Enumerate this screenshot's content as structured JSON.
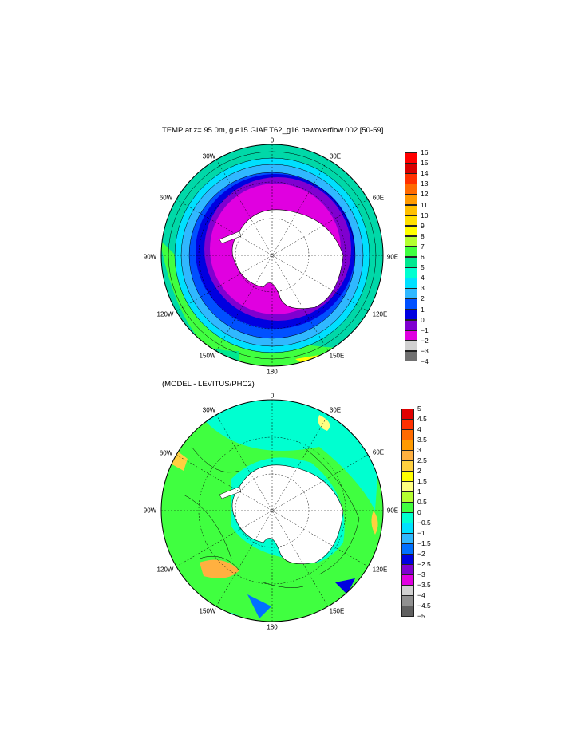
{
  "panel_top": {
    "title": "TEMP at z=  95.0m, g.e15.GIAF.T62_g16.newoverflow.002 [50-59]",
    "lon_labels": {
      "n": "0",
      "ne": "30E",
      "e1": "60E",
      "e": "90E",
      "se1": "120E",
      "se": "150E",
      "s": "180",
      "sw": "150W",
      "sw1": "120W",
      "w": "90W",
      "nw1": "60W",
      "nw": "30W"
    },
    "colorbar": {
      "labels": [
        "16",
        "15",
        "14",
        "13",
        "12",
        "11",
        "10",
        "9",
        "8",
        "7",
        "6",
        "5",
        "4",
        "3",
        "2",
        "1",
        "0",
        "−1",
        "−2",
        "−3",
        "−4"
      ],
      "colors": [
        "#ff0000",
        "#d80000",
        "#ff3000",
        "#ff6a00",
        "#ff9a00",
        "#ffc000",
        "#ffe000",
        "#ffff00",
        "#b4ff30",
        "#40ff40",
        "#00e890",
        "#00ffd0",
        "#00e0ff",
        "#30b8ff",
        "#0050ff",
        "#0000e0",
        "#8000d0",
        "#e000e0",
        "#d0d0d0",
        "#707070"
      ]
    }
  },
  "panel_bottom": {
    "title": "(MODEL - LEVITUS/PHC2)",
    "lon_labels": {
      "n": "0",
      "ne": "30E",
      "e1": "60E",
      "e": "90E",
      "se1": "120E",
      "se": "150E",
      "s": "180",
      "sw": "150W",
      "sw1": "120W",
      "w": "90W",
      "nw1": "60W",
      "nw": "30W"
    },
    "colorbar": {
      "labels": [
        "5",
        "4.5",
        "4",
        "3.5",
        "3",
        "2.5",
        "2",
        "1.5",
        "1",
        "0.5",
        "0",
        "−0.5",
        "−1",
        "−1.5",
        "−2",
        "−2.5",
        "−3",
        "−3.5",
        "−4",
        "−4.5",
        "−5"
      ],
      "colors": [
        "#e00000",
        "#ff3000",
        "#ff6a00",
        "#ff9a00",
        "#ffb040",
        "#ffd040",
        "#ffff00",
        "#ffff80",
        "#b4ff30",
        "#40ff40",
        "#00ffd0",
        "#00e0ff",
        "#30b8ff",
        "#0070ff",
        "#0000e0",
        "#8000d0",
        "#e000e0",
        "#d0d0d0",
        "#909090",
        "#606060"
      ]
    }
  }
}
